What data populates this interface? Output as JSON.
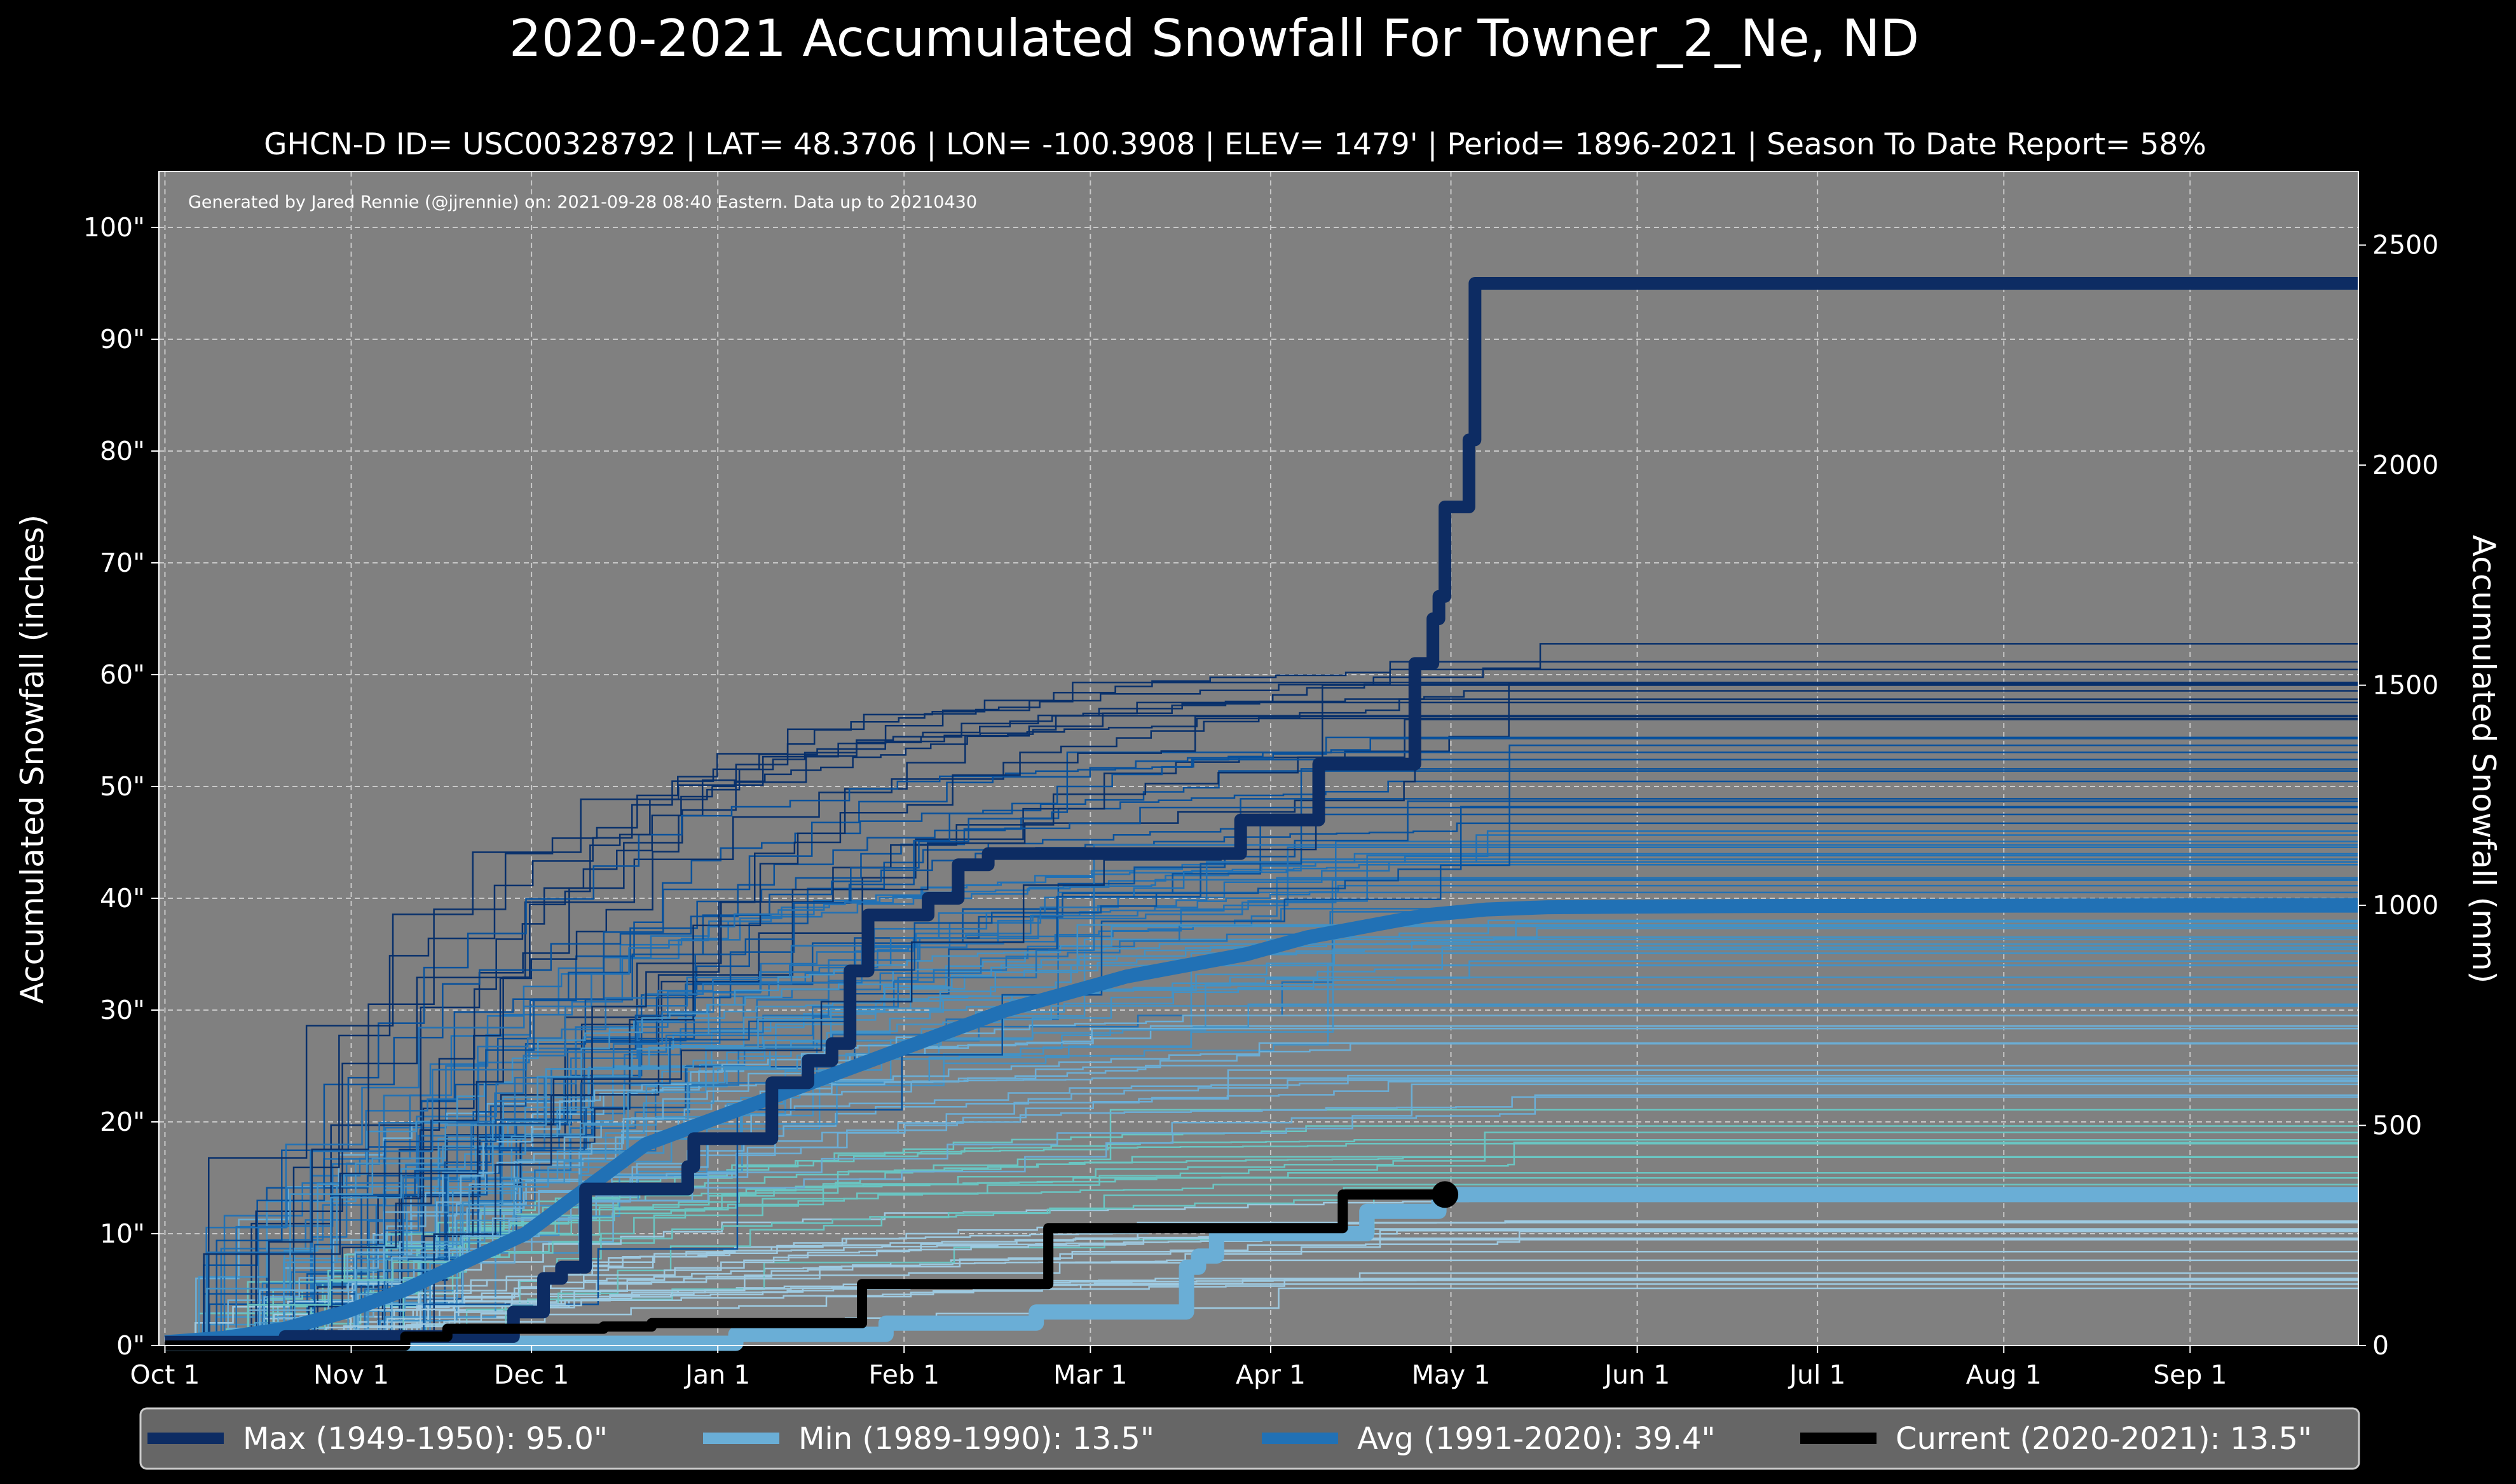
{
  "chart_data": {
    "type": "line",
    "title": "2020-2021 Accumulated Snowfall For Towner_2_Ne, ND",
    "subtitle": "GHCN-D ID= USC00328792 | LAT= 48.3706 | LON= -100.3908 | ELEV= 1479' | Period= 1896-2021 | Season To Date Report= 58%",
    "credit": "Generated by Jared Rennie (@jjrennie) on: 2021-09-28 08:40 Eastern. Data up to 20210430",
    "ylabel_left": "Accumulated Snowfall (inches)",
    "ylabel_right": "Accumulated Snowfall (mm)",
    "ylim_inches": [
      0,
      105
    ],
    "ylim_mm": [
      0,
      2667
    ],
    "xlim_days": [
      -1,
      365
    ],
    "y_ticks": [
      {
        "value": 0,
        "label": "0\""
      },
      {
        "value": 10,
        "label": "10\""
      },
      {
        "value": 20,
        "label": "20\""
      },
      {
        "value": 30,
        "label": "30\""
      },
      {
        "value": 40,
        "label": "40\""
      },
      {
        "value": 50,
        "label": "50\""
      },
      {
        "value": 60,
        "label": "60\""
      },
      {
        "value": 70,
        "label": "70\""
      },
      {
        "value": 80,
        "label": "80\""
      },
      {
        "value": 90,
        "label": "90\""
      },
      {
        "value": 100,
        "label": "100\""
      }
    ],
    "y2_ticks": [
      {
        "value": 0,
        "label": "0"
      },
      {
        "value": 500,
        "label": "500"
      },
      {
        "value": 1000,
        "label": "1000"
      },
      {
        "value": 1500,
        "label": "1500"
      },
      {
        "value": 2000,
        "label": "2000"
      },
      {
        "value": 2500,
        "label": "2500"
      }
    ],
    "x_ticks": [
      {
        "day": 0,
        "label": "Oct 1"
      },
      {
        "day": 31,
        "label": "Nov 1"
      },
      {
        "day": 61,
        "label": "Dec 1"
      },
      {
        "day": 92,
        "label": "Jan 1"
      },
      {
        "day": 123,
        "label": "Feb 1"
      },
      {
        "day": 154,
        "label": "Mar 1"
      },
      {
        "day": 184,
        "label": "Apr 1"
      },
      {
        "day": 214,
        "label": "May 1"
      },
      {
        "day": 245,
        "label": "Jun 1"
      },
      {
        "day": 275,
        "label": "Jul 1"
      },
      {
        "day": 306,
        "label": "Aug 1"
      },
      {
        "day": 337,
        "label": "Sep 1"
      }
    ],
    "grid": true,
    "legend_position": "bottom",
    "series": [
      {
        "key": "max",
        "name": "Max (1949-1950):",
        "value_label": "95.0\"",
        "total": 95.0,
        "color": "#0d2c63",
        "step": true,
        "points": [
          [
            0,
            0.3
          ],
          [
            15,
            0.3
          ],
          [
            20,
            0.8
          ],
          [
            55,
            0.8
          ],
          [
            58,
            3
          ],
          [
            63,
            6
          ],
          [
            66,
            7
          ],
          [
            70,
            14
          ],
          [
            85,
            14
          ],
          [
            87,
            16
          ],
          [
            88,
            18.5
          ],
          [
            100,
            18.5
          ],
          [
            101,
            23.5
          ],
          [
            106,
            23.5
          ],
          [
            107,
            25.5
          ],
          [
            110,
            25.5
          ],
          [
            111,
            27
          ],
          [
            113,
            27
          ],
          [
            114,
            33.5
          ],
          [
            116,
            33.5
          ],
          [
            117,
            38.5
          ],
          [
            126,
            38.5
          ],
          [
            127,
            40
          ],
          [
            131,
            40
          ],
          [
            132,
            43
          ],
          [
            136,
            43
          ],
          [
            137,
            44
          ],
          [
            178,
            44
          ],
          [
            179,
            47
          ],
          [
            191,
            47
          ],
          [
            192,
            52
          ],
          [
            207,
            52
          ],
          [
            208,
            61
          ],
          [
            210,
            61
          ],
          [
            211,
            65
          ],
          [
            212,
            67
          ],
          [
            213,
            75
          ],
          [
            215,
            75
          ],
          [
            217,
            81
          ],
          [
            218,
            95
          ],
          [
            365,
            95
          ]
        ]
      },
      {
        "key": "min",
        "name": "Min (1989-1990):",
        "value_label": "13.5\"",
        "total": 13.5,
        "color": "#6aaed6",
        "step": true,
        "points": [
          [
            0,
            0.2
          ],
          [
            90,
            0.2
          ],
          [
            95,
            1
          ],
          [
            115,
            1
          ],
          [
            120,
            2
          ],
          [
            140,
            2
          ],
          [
            145,
            3
          ],
          [
            168,
            3
          ],
          [
            170,
            7
          ],
          [
            172,
            8
          ],
          [
            175,
            10
          ],
          [
            198,
            10
          ],
          [
            200,
            12
          ],
          [
            210,
            12
          ],
          [
            212,
            13.5
          ],
          [
            365,
            13.5
          ]
        ]
      },
      {
        "key": "avg",
        "name": "Avg (1991-2020):",
        "value_label": "39.4\"",
        "total": 39.4,
        "color": "#2171b5",
        "step": false,
        "points": [
          [
            0,
            0.3
          ],
          [
            10,
            0.7
          ],
          [
            20,
            1.5
          ],
          [
            30,
            3
          ],
          [
            40,
            5
          ],
          [
            50,
            7.5
          ],
          [
            60,
            10
          ],
          [
            70,
            14
          ],
          [
            80,
            18
          ],
          [
            90,
            20
          ],
          [
            100,
            22
          ],
          [
            110,
            24
          ],
          [
            120,
            26
          ],
          [
            130,
            28
          ],
          [
            140,
            30
          ],
          [
            150,
            31.5
          ],
          [
            160,
            33
          ],
          [
            170,
            34
          ],
          [
            180,
            35
          ],
          [
            190,
            36.5
          ],
          [
            200,
            37.5
          ],
          [
            210,
            38.5
          ],
          [
            220,
            39
          ],
          [
            230,
            39.2
          ],
          [
            260,
            39.3
          ],
          [
            365,
            39.4
          ]
        ]
      },
      {
        "key": "current",
        "name": "Current (2020-2021):",
        "value_label": "13.5\"",
        "total": 13.5,
        "color": "#000000",
        "step": true,
        "points": [
          [
            0,
            0
          ],
          [
            40,
            0.8
          ],
          [
            46,
            0.8
          ],
          [
            47,
            1.5
          ],
          [
            72,
            1.5
          ],
          [
            73,
            1.7
          ],
          [
            80,
            1.7
          ],
          [
            81,
            2
          ],
          [
            115,
            2
          ],
          [
            116,
            5.5
          ],
          [
            145,
            5.5
          ],
          [
            147,
            10.5
          ],
          [
            194,
            10.5
          ],
          [
            196,
            13.5
          ],
          [
            213,
            13.5
          ]
        ]
      }
    ]
  }
}
